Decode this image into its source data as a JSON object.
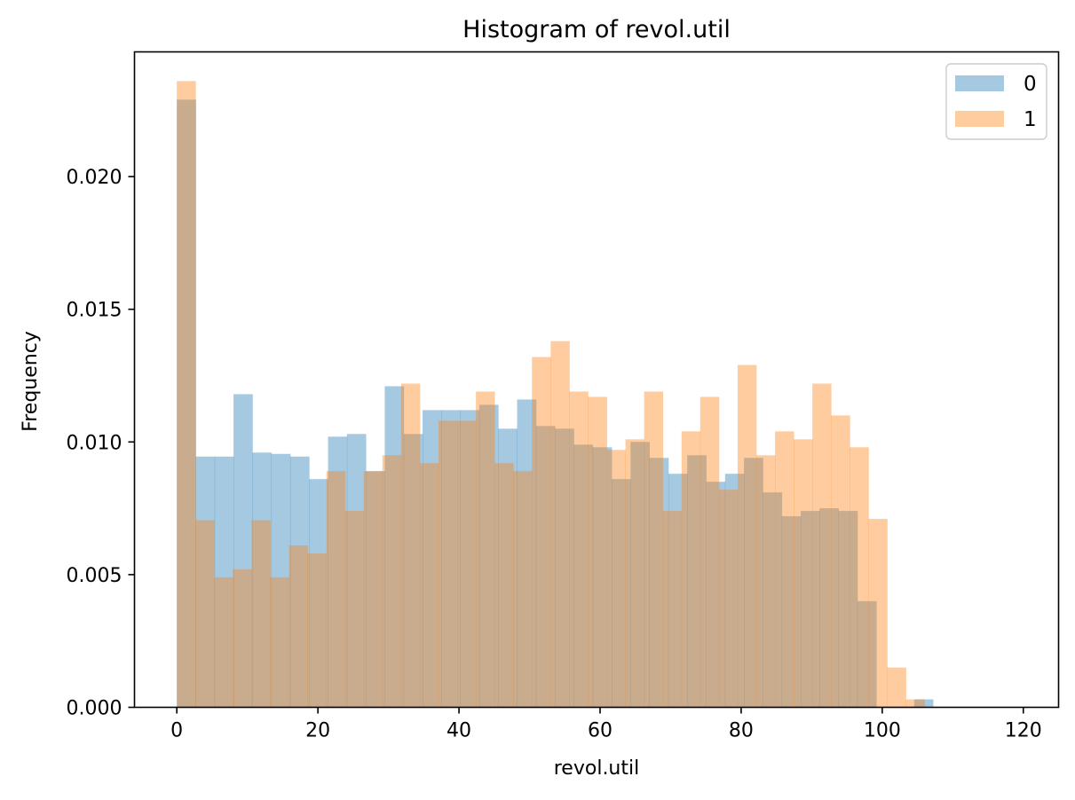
{
  "chart_data": {
    "type": "bar",
    "title": "Histogram of revol.util",
    "xlabel": "revol.util",
    "ylabel": "Frequency",
    "xlim": [
      -6,
      125
    ],
    "ylim": [
      0,
      0.0247
    ],
    "xticks": [
      0,
      20,
      40,
      60,
      80,
      100,
      120
    ],
    "yticks": [
      0,
      0.005,
      0.01,
      0.015,
      0.02
    ],
    "ytick_labels": [
      "0.000",
      "0.005",
      "0.010",
      "0.015",
      "0.020"
    ],
    "grid": false,
    "legend_position": "top-right",
    "series": [
      {
        "name": "0",
        "color": "#1f77b4",
        "opacity": 0.4,
        "bin_edges": [
          0,
          2.68,
          5.36,
          8.04,
          10.72,
          13.4,
          16.08,
          18.76,
          21.44,
          24.12,
          26.8,
          29.48,
          32.16,
          34.84,
          37.52,
          40.2,
          42.88,
          45.56,
          48.24,
          50.92,
          53.6,
          56.28,
          58.96,
          61.64,
          64.32,
          67.0,
          69.68,
          72.36,
          75.04,
          77.72,
          80.4,
          83.08,
          85.76,
          88.44,
          91.12,
          93.8,
          96.48,
          99.16,
          101.84,
          104.52,
          107.2
        ],
        "values": [
          0.0229,
          0.00945,
          0.00945,
          0.0118,
          0.0096,
          0.00955,
          0.00945,
          0.0086,
          0.0102,
          0.0103,
          0.0089,
          0.0121,
          0.0103,
          0.0112,
          0.0112,
          0.0112,
          0.0114,
          0.0105,
          0.0116,
          0.0106,
          0.0105,
          0.0099,
          0.0098,
          0.0086,
          0.01,
          0.0094,
          0.0088,
          0.0095,
          0.0085,
          0.0088,
          0.0094,
          0.0081,
          0.0072,
          0.0074,
          0.0075,
          0.0074,
          0.004,
          0.0,
          0.0,
          0.0003
        ]
      },
      {
        "name": "1",
        "color": "#ff7f0e",
        "opacity": 0.4,
        "bin_edges": [
          0,
          2.65,
          5.3,
          7.95,
          10.6,
          13.25,
          15.9,
          18.55,
          21.2,
          23.85,
          26.5,
          29.15,
          31.8,
          34.45,
          37.1,
          39.75,
          42.4,
          45.05,
          47.7,
          50.35,
          53.0,
          55.65,
          58.3,
          60.95,
          63.6,
          66.25,
          68.9,
          71.55,
          74.2,
          76.85,
          79.5,
          82.15,
          84.8,
          87.45,
          90.1,
          92.75,
          95.4,
          98.05,
          100.7,
          103.35,
          106.0
        ],
        "values": [
          0.0236,
          0.00705,
          0.0049,
          0.0052,
          0.00705,
          0.0049,
          0.0061,
          0.0058,
          0.0089,
          0.0074,
          0.0089,
          0.0095,
          0.0122,
          0.0092,
          0.0108,
          0.0108,
          0.0119,
          0.0092,
          0.0089,
          0.0132,
          0.0138,
          0.0119,
          0.0117,
          0.0097,
          0.0101,
          0.0119,
          0.0074,
          0.0104,
          0.0117,
          0.0082,
          0.0129,
          0.0095,
          0.0104,
          0.0101,
          0.0122,
          0.011,
          0.0098,
          0.0071,
          0.0015,
          0.0003
        ]
      }
    ]
  }
}
